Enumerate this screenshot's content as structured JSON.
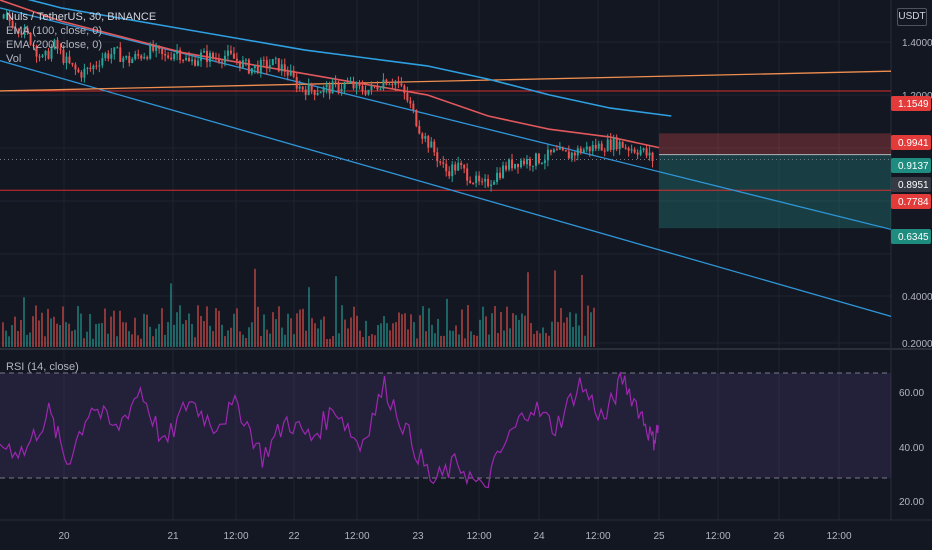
{
  "header": {
    "symbol": "Nuls / TetherUS, 30, BINANCE",
    "ema100": "EMA (100, close, 0)",
    "ema200": "EMA (200, close, 0)",
    "vol": "Vol",
    "unit": "USDT"
  },
  "rsi": {
    "label": "RSI (14, close)"
  },
  "price_axis": {
    "ticks": [
      "1.4000",
      "1.2000",
      "0.4000",
      "0.2000"
    ],
    "tags": [
      {
        "value": "1.1549",
        "color": "#e33a3a"
      },
      {
        "value": "0.9941",
        "color": "#e33a3a"
      },
      {
        "value": "0.9137",
        "color": "#1e8c7e"
      },
      {
        "value": "0.8951",
        "color": "#363a45"
      },
      {
        "value": "0.7784",
        "color": "#e33a3a"
      },
      {
        "value": "0.6345",
        "color": "#1e8c7e"
      }
    ]
  },
  "rsi_axis": {
    "ticks": [
      "60.00",
      "40.00",
      "20.00"
    ]
  },
  "time_axis": {
    "ticks": [
      "20",
      "21",
      "12:00",
      "22",
      "12:00",
      "23",
      "12:00",
      "24",
      "12:00",
      "25",
      "12:00",
      "26",
      "12:00"
    ]
  },
  "colors": {
    "background": "#131722",
    "up": "#26a69a",
    "down": "#ef5350",
    "ema100": "#e0585b",
    "ema200": "#2e9fe0",
    "rsi": "#9c27b0",
    "trendline": "#2f95d6",
    "resistance": "#f08e50",
    "level": "#d32f2f"
  },
  "chart_data": {
    "type": "candlestick",
    "title": "Nuls / TetherUS, 30, BINANCE",
    "ylim": [
      0.18,
      1.5
    ],
    "x_range_days": [
      19.5,
      26.8
    ],
    "price_series": [
      [
        19.55,
        1.43
      ],
      [
        19.65,
        1.4
      ],
      [
        19.75,
        1.35
      ],
      [
        19.85,
        1.27
      ],
      [
        19.95,
        1.33
      ],
      [
        20.05,
        1.26
      ],
      [
        20.15,
        1.22
      ],
      [
        20.25,
        1.24
      ],
      [
        20.35,
        1.29
      ],
      [
        20.45,
        1.3
      ],
      [
        20.55,
        1.27
      ],
      [
        20.65,
        1.29
      ],
      [
        20.75,
        1.31
      ],
      [
        20.85,
        1.28
      ],
      [
        20.95,
        1.31
      ],
      [
        21.05,
        1.26
      ],
      [
        21.15,
        1.29
      ],
      [
        21.25,
        1.28
      ],
      [
        21.35,
        1.29
      ],
      [
        21.45,
        1.27
      ],
      [
        21.55,
        1.24
      ],
      [
        21.65,
        1.25
      ],
      [
        21.75,
        1.26
      ],
      [
        21.85,
        1.23
      ],
      [
        21.95,
        1.17
      ],
      [
        22.05,
        1.16
      ],
      [
        22.15,
        1.16
      ],
      [
        22.25,
        1.17
      ],
      [
        22.35,
        1.18
      ],
      [
        22.45,
        1.16
      ],
      [
        22.55,
        1.16
      ],
      [
        22.65,
        1.2
      ],
      [
        22.75,
        1.19
      ],
      [
        22.85,
        1.11
      ],
      [
        22.95,
        1.0
      ],
      [
        23.05,
        0.93
      ],
      [
        23.15,
        0.85
      ],
      [
        23.25,
        0.87
      ],
      [
        23.35,
        0.83
      ],
      [
        23.45,
        0.79
      ],
      [
        23.55,
        0.83
      ],
      [
        23.65,
        0.87
      ],
      [
        23.75,
        0.89
      ],
      [
        23.85,
        0.89
      ],
      [
        23.95,
        0.9
      ],
      [
        24.05,
        0.92
      ],
      [
        24.15,
        0.91
      ],
      [
        24.25,
        0.93
      ],
      [
        24.35,
        0.94
      ],
      [
        24.45,
        0.95
      ],
      [
        24.55,
        0.96
      ],
      [
        24.65,
        0.94
      ],
      [
        24.75,
        0.93
      ],
      [
        24.85,
        0.895
      ]
    ],
    "ema100": [
      [
        19.5,
        1.5
      ],
      [
        20.0,
        1.42
      ],
      [
        20.5,
        1.36
      ],
      [
        21.0,
        1.3
      ],
      [
        21.5,
        1.26
      ],
      [
        22.0,
        1.22
      ],
      [
        22.5,
        1.18
      ],
      [
        23.0,
        1.14
      ],
      [
        23.5,
        1.06
      ],
      [
        24.0,
        1.01
      ],
      [
        24.5,
        0.98
      ],
      [
        24.9,
        0.94
      ]
    ],
    "ema200": [
      [
        19.5,
        1.53
      ],
      [
        20.0,
        1.47
      ],
      [
        20.5,
        1.43
      ],
      [
        21.0,
        1.39
      ],
      [
        21.5,
        1.35
      ],
      [
        22.0,
        1.31
      ],
      [
        22.5,
        1.28
      ],
      [
        23.0,
        1.25
      ],
      [
        23.5,
        1.2
      ],
      [
        24.0,
        1.14
      ],
      [
        24.5,
        1.09
      ],
      [
        25.0,
        1.06
      ]
    ],
    "trendlines": [
      {
        "p1": [
          19.5,
          1.27
        ],
        "p2": [
          26.8,
          0.3
        ],
        "color": "trendline"
      },
      {
        "p1": [
          19.5,
          1.47
        ],
        "p2": [
          26.8,
          0.63
        ],
        "color": "trendline"
      },
      {
        "p1": [
          19.5,
          1.155
        ],
        "p2": [
          26.8,
          1.23
        ],
        "color": "resistance"
      }
    ],
    "levels": [
      1.1549,
      0.7784
    ],
    "zones": [
      {
        "from_day": 24.9,
        "to_day": 26.8,
        "top": 0.9941,
        "bottom": 0.9137,
        "kind": "stop"
      },
      {
        "from_day": 24.9,
        "to_day": 26.8,
        "top": 0.9137,
        "bottom": 0.6345,
        "kind": "target"
      }
    ],
    "rsi_series": [
      [
        19.5,
        43
      ],
      [
        19.7,
        40
      ],
      [
        19.9,
        55
      ],
      [
        20.05,
        36
      ],
      [
        20.25,
        58
      ],
      [
        20.45,
        48
      ],
      [
        20.65,
        64
      ],
      [
        20.85,
        42
      ],
      [
        21.05,
        60
      ],
      [
        21.25,
        50
      ],
      [
        21.45,
        58
      ],
      [
        21.65,
        38
      ],
      [
        21.85,
        52
      ],
      [
        22.05,
        45
      ],
      [
        22.25,
        57
      ],
      [
        22.45,
        42
      ],
      [
        22.65,
        65
      ],
      [
        22.85,
        46
      ],
      [
        23.05,
        28
      ],
      [
        23.25,
        36
      ],
      [
        23.45,
        25
      ],
      [
        23.65,
        44
      ],
      [
        23.85,
        58
      ],
      [
        24.05,
        49
      ],
      [
        24.25,
        66
      ],
      [
        24.45,
        52
      ],
      [
        24.6,
        68
      ],
      [
        24.75,
        55
      ],
      [
        24.85,
        44
      ],
      [
        24.9,
        50
      ]
    ],
    "rsi_ylim": [
      14,
      78
    ],
    "rsi_bands": [
      70,
      30
    ]
  }
}
